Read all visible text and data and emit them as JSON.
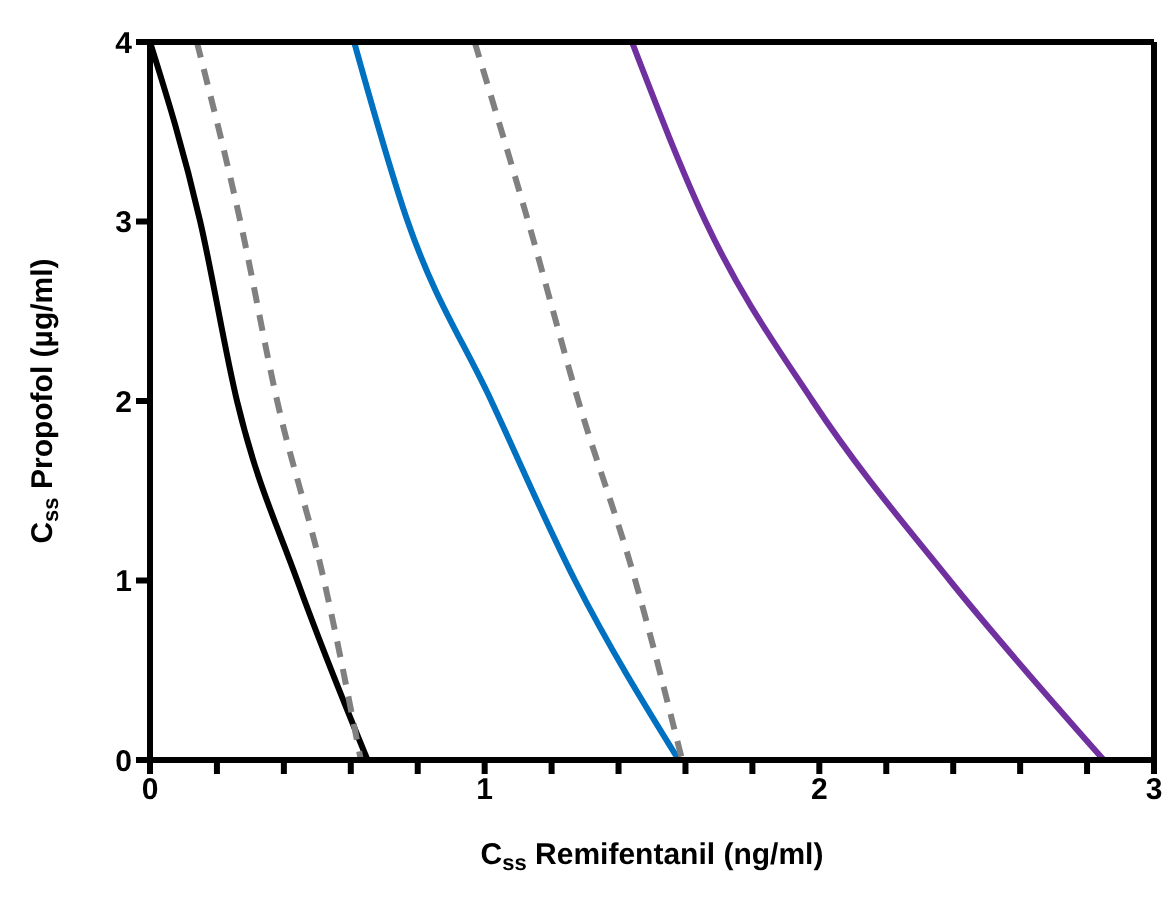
{
  "chart_data": {
    "type": "line",
    "xlabel": "C$_{ss}$ Remifentanil (ng/ml)",
    "ylabel": "C$_{ss}$ Propofol (µg/ml)",
    "xlim": [
      0,
      3
    ],
    "ylim": [
      0,
      4
    ],
    "xticks": [
      0,
      {
        "value": 0.2,
        "label": null
      },
      {
        "value": 0.4,
        "label": null
      },
      {
        "value": 0.6,
        "label": null
      },
      {
        "value": 0.8,
        "label": null
      },
      1,
      {
        "value": 1.2,
        "label": null
      },
      {
        "value": 1.4,
        "label": null
      },
      {
        "value": 1.6,
        "label": null
      },
      {
        "value": 1.8,
        "label": null
      },
      2,
      {
        "value": 2.2,
        "label": null
      },
      {
        "value": 2.4,
        "label": null
      },
      {
        "value": 2.6,
        "label": null
      },
      {
        "value": 2.8,
        "label": null
      },
      3
    ],
    "yticks": [
      0,
      1,
      2,
      3,
      4
    ],
    "series": [
      {
        "color": "#000000",
        "line_style": "solid",
        "x": [
          0,
          0.15,
          0.26,
          0.44,
          0.65
        ],
        "values": [
          4,
          3,
          2,
          1,
          0
        ]
      },
      {
        "color": "#808080",
        "line_style": "dashed",
        "x": [
          0.14,
          0.27,
          0.38,
          0.52,
          0.63
        ],
        "values": [
          4,
          3,
          2,
          1,
          0
        ]
      },
      {
        "color": "#0070c0",
        "line_style": "solid",
        "x": [
          0.61,
          0.77,
          1.02,
          1.27,
          1.58
        ],
        "values": [
          4,
          3,
          2,
          1,
          0
        ]
      },
      {
        "color": "#808080",
        "line_style": "dashed",
        "x": [
          0.97,
          1.13,
          1.28,
          1.45,
          1.59
        ],
        "values": [
          4,
          3,
          2,
          1,
          0
        ]
      },
      {
        "color": "#7030a0",
        "line_style": "solid",
        "x": [
          1.44,
          1.66,
          1.98,
          2.39,
          2.85
        ],
        "values": [
          4,
          3,
          2,
          1,
          0
        ]
      }
    ]
  }
}
